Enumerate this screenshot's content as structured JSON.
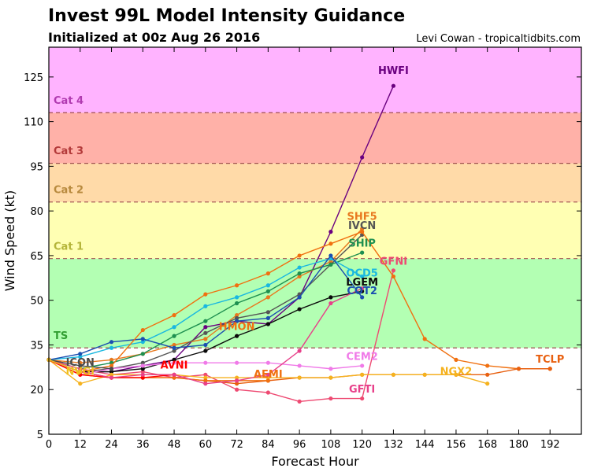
{
  "title": "Invest 99L Model Intensity Guidance",
  "subtitle": "Initialized at 00z Aug 26 2016",
  "credit": "Levi Cowan - tropicaltidbits.com",
  "chart_data": {
    "type": "line",
    "xlabel": "Forecast Hour",
    "ylabel": "Wind Speed (kt)",
    "xlim": [
      0,
      204
    ],
    "ylim": [
      5,
      135
    ],
    "xticks": [
      0,
      12,
      24,
      36,
      48,
      60,
      72,
      84,
      96,
      108,
      120,
      132,
      144,
      156,
      168,
      180,
      192
    ],
    "yticks": [
      5,
      20,
      35,
      50,
      65,
      80,
      95,
      110,
      125
    ],
    "bands": [
      {
        "label": "TS",
        "from": 34,
        "to": 64,
        "color": "#b3ffb3",
        "label_color": "#33a033",
        "label_y": 37
      },
      {
        "label": "Cat 1",
        "from": 64,
        "to": 83,
        "color": "#ffffb3",
        "label_color": "#b5b53a",
        "label_y": 67
      },
      {
        "label": "Cat 2",
        "from": 83,
        "to": 96,
        "color": "#ffdaa8",
        "label_color": "#b88a3e",
        "label_y": 86
      },
      {
        "label": "Cat 3",
        "from": 96,
        "to": 113,
        "color": "#ffb1a8",
        "label_color": "#b33a3a",
        "label_y": 99
      },
      {
        "label": "Cat 4",
        "from": 113,
        "to": 137,
        "color": "#ffb3ff",
        "label_color": "#b03ab0",
        "label_y": 116
      }
    ],
    "series": [
      {
        "name": "HWFI",
        "color": "#6a0080",
        "x": [
          0,
          12,
          24,
          36,
          48,
          60,
          72,
          84,
          96,
          108,
          120,
          132
        ],
        "y": [
          30,
          26,
          26,
          28,
          30,
          41,
          43,
          42,
          51,
          73,
          98,
          122
        ],
        "label_x": 132,
        "label_y": 126
      },
      {
        "name": "SHF5",
        "color": "#e8781e",
        "x": [
          0,
          12,
          24,
          36,
          48,
          60,
          72,
          84,
          96,
          108,
          120
        ],
        "y": [
          30,
          29,
          30,
          32,
          35,
          37,
          45,
          51,
          58,
          63,
          74
        ],
        "label_x": 120,
        "label_y": 77
      },
      {
        "name": "IVCN",
        "color": "#555555",
        "x": [
          0,
          12,
          24,
          36,
          48,
          60,
          72,
          84,
          96,
          108,
          120
        ],
        "y": [
          30,
          26,
          27,
          29,
          33,
          39,
          44,
          46,
          52,
          62,
          72
        ],
        "label_x": 120,
        "label_y": 74
      },
      {
        "name": "SHIP",
        "color": "#1e9050",
        "x": [
          0,
          12,
          24,
          36,
          48,
          60,
          72,
          84,
          96,
          108,
          120
        ],
        "y": [
          30,
          27,
          29,
          32,
          38,
          43,
          49,
          53,
          59,
          62,
          66
        ],
        "label_x": 120,
        "label_y": 68
      },
      {
        "name": "GFNI",
        "color": "#ee4a72",
        "x": [
          0,
          12,
          24,
          36,
          48,
          60,
          72,
          84,
          96,
          108,
          120,
          132
        ],
        "y": [
          30,
          27,
          25,
          26,
          24,
          25,
          20,
          19,
          16,
          17,
          17,
          60
        ],
        "label_x": 132,
        "label_y": 62
      },
      {
        "name": "OCD5",
        "color": "#19b8e0",
        "x": [
          0,
          12,
          24,
          36,
          48,
          60,
          72,
          84,
          96,
          108,
          120
        ],
        "y": [
          30,
          31,
          34,
          36,
          41,
          48,
          51,
          55,
          61,
          64,
          58
        ],
        "label_x": 120,
        "label_y": 58
      },
      {
        "name": "LGEM",
        "color": "#0a0a0a",
        "x": [
          0,
          12,
          24,
          36,
          48,
          60,
          72,
          84,
          96,
          108,
          120
        ],
        "y": [
          30,
          26,
          26,
          27,
          30,
          33,
          38,
          42,
          47,
          51,
          53
        ],
        "label_x": 120,
        "label_y": 55
      },
      {
        "name": "COT2",
        "color": "#1a4fb0",
        "x": [
          0,
          12,
          24,
          36,
          48,
          60,
          72,
          84,
          96,
          108,
          120
        ],
        "y": [
          30,
          32,
          36,
          37,
          34,
          35,
          43,
          44,
          51,
          65,
          51
        ],
        "label_x": 120,
        "label_y": 52
      },
      {
        "name": "HMON",
        "color": "#f07010",
        "x": [
          0,
          12,
          24,
          36,
          48,
          60,
          72,
          84,
          96,
          108,
          120,
          132,
          144,
          156,
          168,
          180,
          192
        ],
        "y": [
          30,
          26,
          28,
          40,
          45,
          52,
          55,
          59,
          65,
          69,
          73,
          58,
          37,
          30,
          28,
          27,
          27
        ],
        "label_x": 72,
        "label_y": 40
      },
      {
        "name": "CEM2",
        "color": "#f07ae8",
        "x": [
          0,
          12,
          24,
          36,
          48,
          60,
          72,
          84,
          96,
          108,
          120
        ],
        "y": [
          30,
          25,
          27,
          28,
          29,
          29,
          29,
          29,
          28,
          27,
          28
        ],
        "label_x": 120,
        "label_y": 30
      },
      {
        "name": "TCLP",
        "color": "#e86010",
        "x": [
          0,
          12,
          24,
          36,
          48,
          60,
          72,
          84,
          96,
          108,
          120,
          132,
          144,
          156,
          168,
          180,
          192
        ],
        "y": [
          30,
          26,
          24,
          24,
          24,
          23,
          22,
          23,
          24,
          24,
          25,
          25,
          25,
          25,
          25,
          27,
          27
        ],
        "label_x": 192,
        "label_y": 29
      },
      {
        "name": "NGX2",
        "color": "#f5b21e",
        "x": [
          0,
          12,
          24,
          36,
          48,
          60,
          72,
          84,
          96,
          108,
          120,
          132,
          144,
          156,
          168
        ],
        "y": [
          30,
          22,
          25,
          25,
          25,
          24,
          24,
          24,
          24,
          24,
          25,
          25,
          25,
          25,
          22
        ],
        "label_x": 156,
        "label_y": 25
      },
      {
        "name": "AEMI",
        "color": "#f07010",
        "x": [
          0,
          12,
          24,
          36,
          48,
          60,
          72,
          84
        ],
        "y": [
          30,
          25,
          24,
          24,
          24,
          23,
          23,
          23
        ],
        "label_x": 84,
        "label_y": 24
      },
      {
        "name": "AVNI",
        "color": "#ff0000",
        "x": [
          0,
          12,
          24,
          36,
          48
        ],
        "y": [
          30,
          25,
          24,
          24,
          25
        ],
        "label_x": 48,
        "label_y": 27
      },
      {
        "name": "GFTI",
        "color": "#e8408a",
        "x": [
          0,
          12,
          24,
          36,
          48,
          60,
          72,
          84,
          96,
          108,
          120
        ],
        "y": [
          30,
          26,
          24,
          25,
          25,
          22,
          23,
          25,
          33,
          49,
          54
        ],
        "label_x": 120,
        "label_y": 19
      },
      {
        "name": "ICON",
        "color": "#4a4a4a",
        "x": [
          0,
          12,
          24
        ],
        "y": [
          30,
          28,
          27
        ],
        "label_x": 12,
        "label_y": 28
      },
      {
        "name": "NVGI",
        "color": "#f0c01e",
        "x": [
          0,
          12
        ],
        "y": [
          30,
          26
        ],
        "label_x": 12,
        "label_y": 25
      }
    ],
    "series_labels_extra": [
      {
        "name": "TS",
        "note": "band label"
      }
    ]
  }
}
